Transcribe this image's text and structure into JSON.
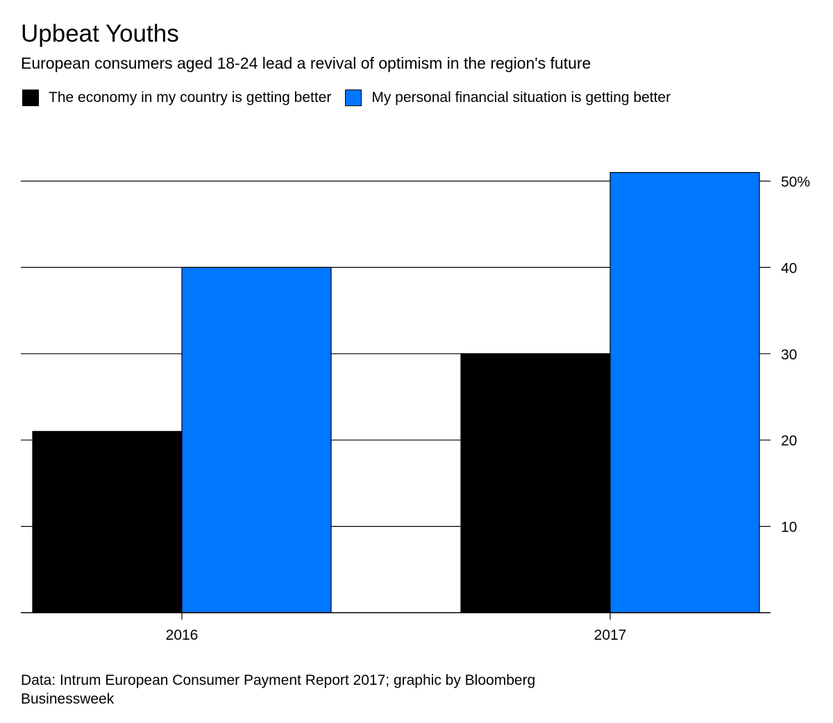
{
  "header": {
    "title": "Upbeat Youths",
    "subtitle": "European consumers aged 18-24 lead a revival of optimism in the region's future"
  },
  "legend": {
    "items": [
      {
        "label": "The economy in my country is getting better",
        "color": "#000000"
      },
      {
        "label": "My personal financial situation is getting better",
        "color": "#0077FF"
      }
    ]
  },
  "chart_data": {
    "type": "bar",
    "categories": [
      "2016",
      "2017"
    ],
    "series": [
      {
        "name": "The economy in my country is getting better",
        "values": [
          21,
          30
        ],
        "color": "#000000"
      },
      {
        "name": "My personal financial situation is getting better",
        "values": [
          40,
          51
        ],
        "color": "#0077FF"
      }
    ],
    "ylim": [
      0,
      50
    ],
    "yticks": [
      10,
      20,
      30,
      40,
      50
    ],
    "ytick_labels": [
      "10",
      "20",
      "30",
      "40",
      "50%"
    ],
    "y_axis_position": "right",
    "grid": true,
    "legend_placement": "top-left"
  },
  "footer": {
    "source": "Data: Intrum European Consumer Payment Report 2017; graphic by Bloomberg Businessweek"
  }
}
